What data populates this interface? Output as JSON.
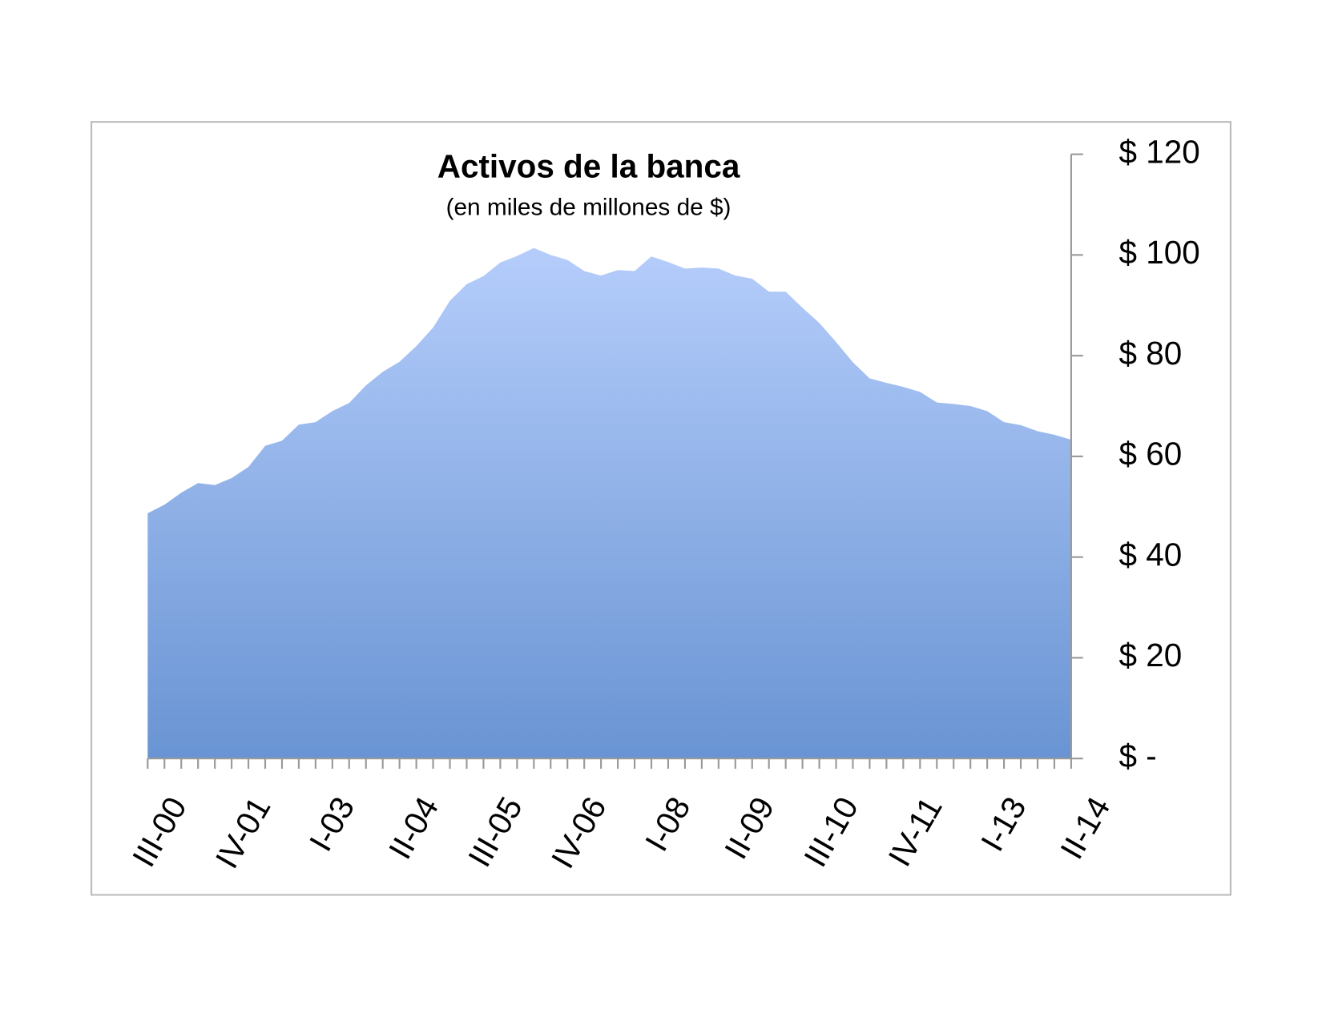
{
  "chart_data": {
    "type": "area",
    "title": "Activos de la banca",
    "subtitle": "(en miles de millones de $)",
    "categories": [
      "III-00",
      null,
      null,
      null,
      null,
      "IV-01",
      null,
      null,
      null,
      null,
      "I-03",
      null,
      null,
      null,
      null,
      "II-04",
      null,
      null,
      null,
      null,
      "III-05",
      null,
      null,
      null,
      null,
      "IV-06",
      null,
      null,
      null,
      null,
      "I-08",
      null,
      null,
      null,
      null,
      "II-09",
      null,
      null,
      null,
      null,
      "III-10",
      null,
      null,
      null,
      null,
      "IV-11",
      null,
      null,
      null,
      null,
      "I-13",
      null,
      null,
      null,
      null,
      "II-14"
    ],
    "values": [
      48.7,
      50.4,
      52.8,
      54.7,
      54.3,
      55.7,
      57.9,
      62.1,
      63.1,
      66.3,
      66.8,
      69.0,
      70.6,
      74.1,
      76.8,
      78.8,
      81.9,
      85.6,
      90.9,
      94.2,
      95.8,
      98.5,
      99.8,
      101.4,
      100.0,
      99.0,
      96.8,
      95.9,
      97.0,
      96.8,
      99.7,
      98.6,
      97.3,
      97.5,
      97.3,
      95.9,
      95.3,
      92.7,
      92.7,
      89.5,
      86.5,
      82.7,
      78.7,
      75.5,
      74.6,
      73.8,
      72.8,
      70.7,
      70.4,
      70.0,
      69.0,
      66.8,
      66.2,
      65.0,
      64.3,
      63.3
    ],
    "colors": [
      "#b5cdfb",
      "#6994d3"
    ],
    "ylim": [
      0,
      120
    ],
    "yticks": [
      {
        "value": 0,
        "label": "$ -"
      },
      {
        "value": 20,
        "label": "$ 20"
      },
      {
        "value": 40,
        "label": "$ 40"
      },
      {
        "value": 60,
        "label": "$ 60"
      },
      {
        "value": 80,
        "label": "$ 80"
      },
      {
        "value": 100,
        "label": "$ 100"
      },
      {
        "value": 120,
        "label": "$ 120"
      }
    ],
    "yaxis_side": "right"
  }
}
